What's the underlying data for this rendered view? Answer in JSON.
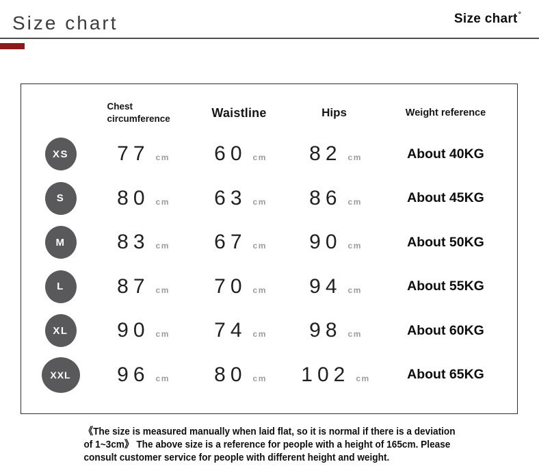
{
  "header": {
    "tab_label": "Size chart",
    "watermark_text": "Size chart",
    "watermark_mark": "°"
  },
  "colors": {
    "accent_red": "#8B1A1A",
    "badge_gray": "#59595B",
    "divider_gray": "#4E4E4E"
  },
  "table": {
    "headers": {
      "chest": "Chest circumference",
      "waist": "Waistline",
      "hips": "Hips",
      "weight": "Weight reference"
    },
    "unit": "cm",
    "rows": [
      {
        "size": "XS",
        "chest": "77",
        "waist": "60",
        "hips": "82",
        "weight": "About 40KG"
      },
      {
        "size": "S",
        "chest": "80",
        "waist": "63",
        "hips": "86",
        "weight": "About 45KG"
      },
      {
        "size": "M",
        "chest": "83",
        "waist": "67",
        "hips": "90",
        "weight": "About 50KG"
      },
      {
        "size": "L",
        "chest": "87",
        "waist": "70",
        "hips": "94",
        "weight": "About 55KG"
      },
      {
        "size": "XL",
        "chest": "90",
        "waist": "74",
        "hips": "98",
        "weight": "About 60KG"
      },
      {
        "size": "XXL",
        "chest": "96",
        "waist": "80",
        "hips": "102",
        "weight": "About 65KG"
      }
    ]
  },
  "footer": {
    "lines": [
      "《The size is measured manually when laid flat, so it is normal if there is a deviation",
      "of 1~3cm》 The above size is a reference for people with a height of 165cm. Please",
      "consult customer service for people with different height and weight."
    ]
  }
}
